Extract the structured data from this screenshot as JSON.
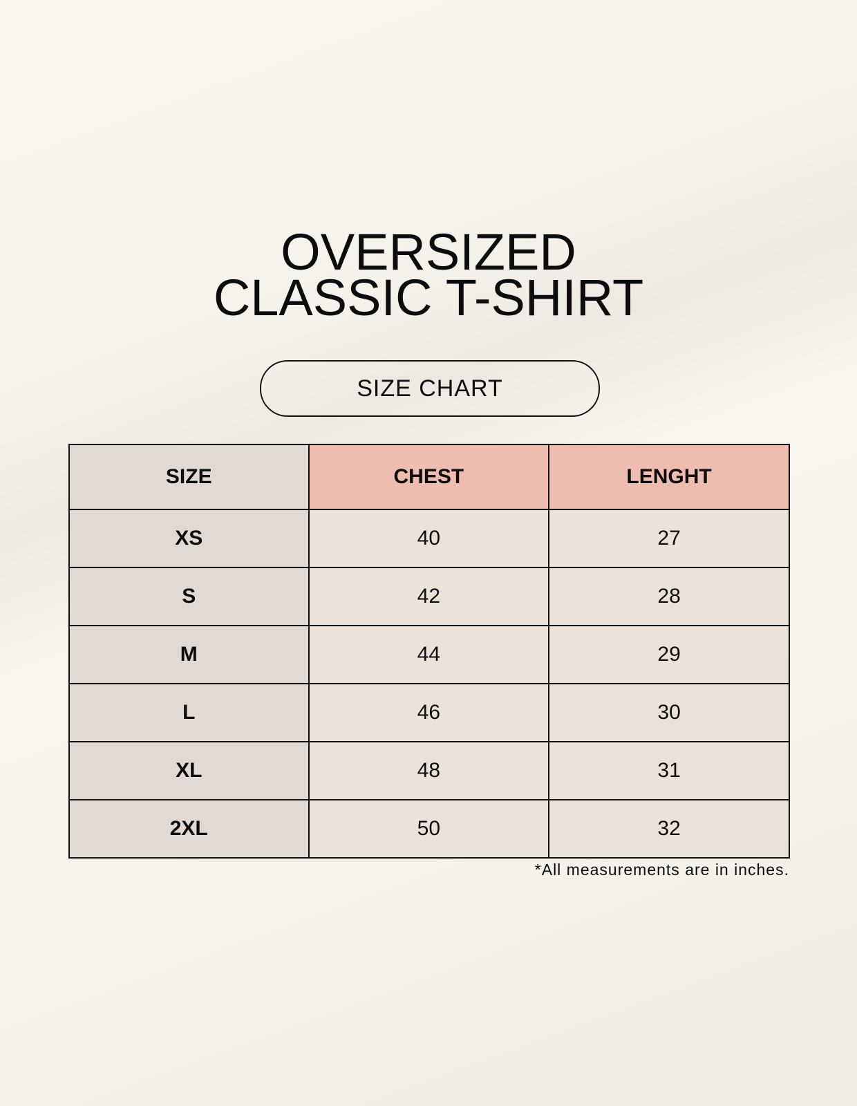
{
  "title": {
    "line1": "OVERSIZED",
    "line2": "CLASSIC T-SHIRT"
  },
  "badge": "SIZE CHART",
  "table": {
    "headers": [
      "SIZE",
      "CHEST",
      "LENGHT"
    ],
    "rows": [
      [
        "XS",
        "40",
        "27"
      ],
      [
        "S",
        "42",
        "28"
      ],
      [
        "M",
        "44",
        "29"
      ],
      [
        "L",
        "46",
        "30"
      ],
      [
        "XL",
        "48",
        "31"
      ],
      [
        "2XL",
        "50",
        "32"
      ]
    ]
  },
  "footnote": "*All measurements are in inches.",
  "colors": {
    "header_accent": "#efbdb0",
    "size_column": "#e1d9d3",
    "cells": "#ebe3d9"
  }
}
